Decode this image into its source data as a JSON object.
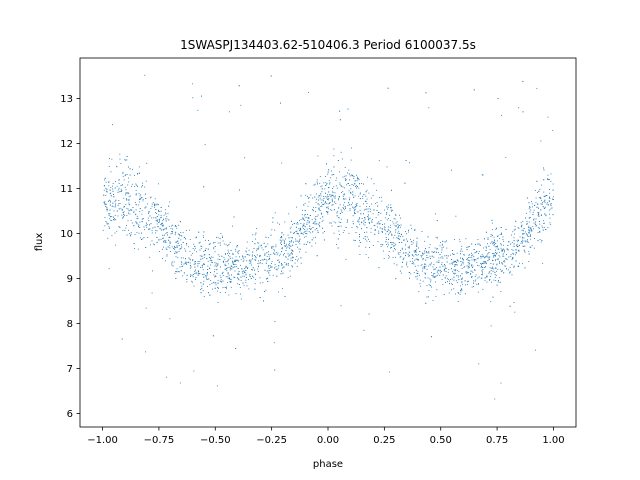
{
  "chart_data": {
    "type": "scatter",
    "title": "1SWASPJ134403.62-510406.3 Period 6100037.5s",
    "xlabel": "phase",
    "ylabel": "flux",
    "xlim": [
      -1.1,
      1.1
    ],
    "ylim": [
      5.7,
      13.9
    ],
    "xticks": [
      -1.0,
      -0.75,
      -0.5,
      -0.25,
      0.0,
      0.25,
      0.5,
      0.75,
      1.0
    ],
    "xtick_labels": [
      "−1.00",
      "−0.75",
      "−0.50",
      "−0.25",
      "0.00",
      "0.25",
      "0.50",
      "0.75",
      "1.00"
    ],
    "yticks": [
      6,
      7,
      8,
      9,
      10,
      11,
      12,
      13
    ],
    "ytick_labels": [
      "6",
      "7",
      "8",
      "9",
      "10",
      "11",
      "12",
      "13"
    ],
    "grid": false,
    "marker_color": "#1f77b4",
    "series": [
      {
        "phase": [
          -1.0,
          -0.95,
          -0.9,
          -0.85,
          -0.8,
          -0.75,
          -0.7,
          -0.65,
          -0.6,
          -0.55,
          -0.5,
          -0.45,
          -0.4,
          -0.35,
          -0.3,
          -0.25,
          -0.2,
          -0.15,
          -0.1,
          -0.05,
          0.0,
          0.05,
          0.1,
          0.15,
          0.2,
          0.25,
          0.3,
          0.35,
          0.4,
          0.45,
          0.5,
          0.55,
          0.6,
          0.65,
          0.7,
          0.75,
          0.8,
          0.85,
          0.9,
          0.95,
          1.0
        ],
        "flux": [
          10.8,
          10.6,
          10.9,
          10.5,
          10.4,
          10.2,
          9.9,
          9.6,
          9.4,
          9.3,
          9.3,
          9.3,
          9.2,
          9.3,
          9.4,
          9.5,
          9.6,
          9.8,
          10.2,
          10.5,
          10.8,
          10.6,
          10.9,
          10.5,
          10.4,
          10.2,
          9.9,
          9.6,
          9.4,
          9.3,
          9.3,
          9.3,
          9.2,
          9.3,
          9.4,
          9.5,
          9.6,
          9.8,
          10.2,
          10.5,
          10.8
        ],
        "scatter": [
          0.5,
          0.6,
          0.7,
          0.6,
          0.5,
          0.5,
          0.5,
          0.45,
          0.45,
          0.5,
          0.45,
          0.45,
          0.4,
          0.4,
          0.45,
          0.5,
          0.45,
          0.45,
          0.5,
          0.55,
          0.5,
          0.6,
          0.7,
          0.6,
          0.5,
          0.5,
          0.5,
          0.45,
          0.45,
          0.5,
          0.45,
          0.45,
          0.4,
          0.4,
          0.45,
          0.5,
          0.45,
          0.45,
          0.5,
          0.55,
          0.5
        ]
      }
    ]
  }
}
